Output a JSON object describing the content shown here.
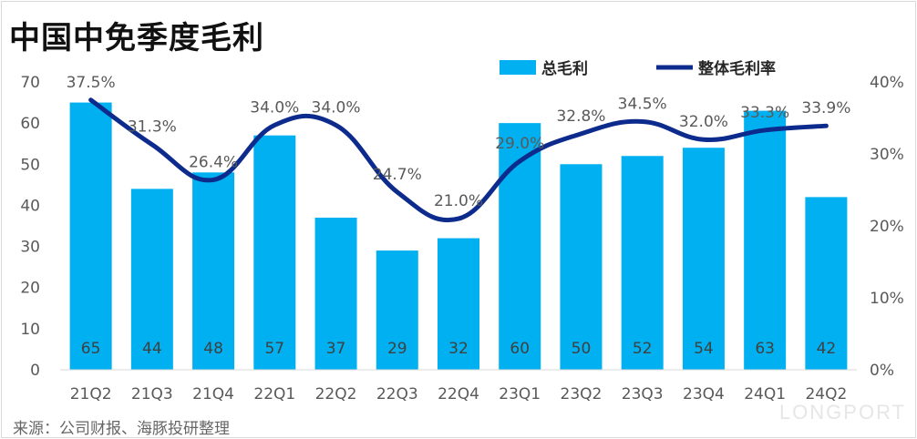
{
  "header": {
    "title": "中国中免季度毛利"
  },
  "footer": {
    "source": "来源：公司财报、海豚投研整理",
    "watermark": "LONGPORT"
  },
  "colors": {
    "bar": "#00b0f0",
    "line": "#0d2b8c",
    "axis": "#d9d9d9"
  },
  "chart_data": {
    "type": "bar+line",
    "title": "中国中免季度毛利",
    "categories": [
      "21Q2",
      "21Q3",
      "21Q4",
      "22Q1",
      "22Q2",
      "22Q3",
      "22Q4",
      "23Q1",
      "23Q2",
      "23Q3",
      "23Q4",
      "24Q1",
      "24Q2"
    ],
    "series": [
      {
        "name": "总毛利",
        "type": "bar",
        "axis": "left",
        "values": [
          65,
          44,
          48,
          57,
          37,
          29,
          32,
          60,
          50,
          52,
          54,
          63,
          42
        ]
      },
      {
        "name": "整体毛利率",
        "type": "line",
        "axis": "right",
        "values": [
          37.5,
          31.3,
          26.4,
          34.0,
          34.0,
          24.7,
          21.0,
          29.0,
          32.8,
          34.5,
          32.0,
          33.3,
          33.9
        ],
        "labels": [
          "37.5%",
          "31.3%",
          "26.4%",
          "34.0%",
          "34.0%",
          "24.7%",
          "21.0%",
          "29.0%",
          "32.8%",
          "34.5%",
          "32.0%",
          "33.3%",
          "33.9%"
        ]
      }
    ],
    "y_left": {
      "min": 0,
      "max": 70,
      "ticks": [
        "0",
        "10",
        "20",
        "30",
        "40",
        "50",
        "60",
        "70"
      ]
    },
    "y_right": {
      "min": 0,
      "max": 40,
      "ticks": [
        "0%",
        "10%",
        "20%",
        "30%",
        "40%"
      ]
    },
    "legend": "top-right",
    "grid": false
  }
}
